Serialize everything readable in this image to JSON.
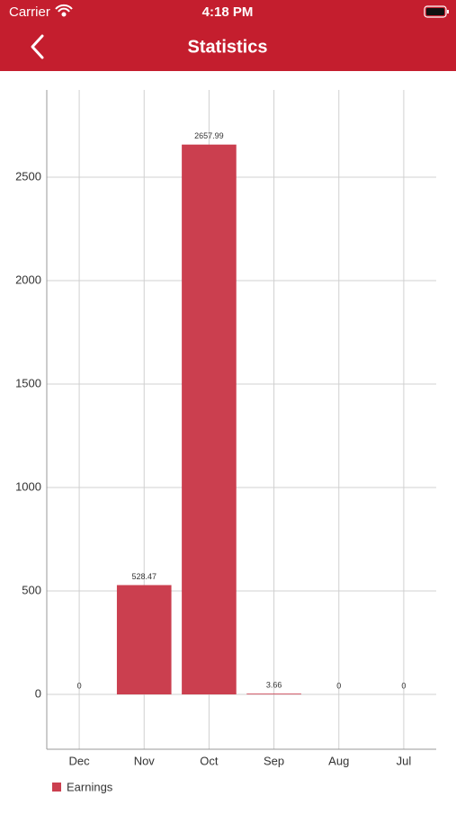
{
  "status_bar": {
    "carrier": "Carrier",
    "time": "4:18 PM"
  },
  "nav_bar": {
    "title": "Statistics"
  },
  "chart_data": {
    "type": "bar",
    "categories": [
      "Dec",
      "Nov",
      "Oct",
      "Sep",
      "Aug",
      "Jul"
    ],
    "series": [
      {
        "name": "Earnings",
        "color": "#cb3f4f",
        "values": [
          0,
          528.47,
          2657.99,
          3.66,
          0,
          0
        ]
      }
    ],
    "ylim": [
      -265,
      2922
    ],
    "yticks": [
      0,
      500,
      1000,
      1500,
      2000,
      2500
    ],
    "grid": true,
    "legend": "bottom-left"
  }
}
